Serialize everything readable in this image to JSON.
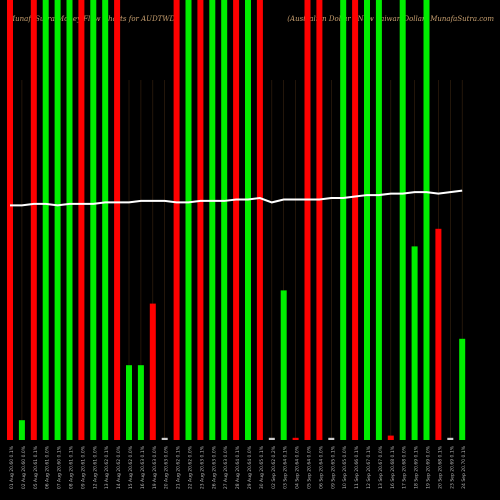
{
  "chart_data": {
    "type": "bar",
    "title": "MunafaSutra Money Flow Charts for AUDTWD",
    "subtitle": "(Australian Dollar / New Taiwan Dollar) MunafaSutra.com",
    "categories": [
      "01 Aug 20.60 0.1%",
      "02 Aug 20.60 0.0%",
      "05 Aug 20.61 0.1%",
      "06 Aug 20.61 0.0%",
      "07 Aug 20.60 0.1%",
      "08 Aug 20.61 0.1%",
      "09 Aug 20.61 0.0%",
      "12 Aug 20.61 0.0%",
      "13 Aug 20.62 0.1%",
      "14 Aug 20.62 0.0%",
      "15 Aug 20.62 0.0%",
      "16 Aug 20.63 0.1%",
      "19 Aug 20.63 0.0%",
      "20 Aug 20.63 0.0%",
      "21 Aug 20.62 0.1%",
      "22 Aug 20.62 0.0%",
      "23 Aug 20.63 0.1%",
      "26 Aug 20.63 0.0%",
      "27 Aug 20.63 0.0%",
      "28 Aug 20.64 0.1%",
      "29 Aug 20.64 0.0%",
      "30 Aug 20.65 0.1%",
      "02 Sep 20.62 0.2%",
      "03 Sep 20.64 0.1%",
      "04 Sep 20.64 0.0%",
      "05 Sep 20.64 0.0%",
      "06 Sep 20.64 0.0%",
      "09 Sep 20.65 0.1%",
      "10 Sep 20.65 0.0%",
      "11 Sep 20.66 0.1%",
      "12 Sep 20.67 0.1%",
      "13 Sep 20.67 0.0%",
      "16 Sep 20.68 0.1%",
      "17 Sep 20.68 0.0%",
      "18 Sep 20.69 0.1%",
      "19 Sep 20.69 0.0%",
      "20 Sep 20.68 0.1%",
      "23 Sep 20.69 0.1%",
      "24 Sep 20.70 0.1%"
    ],
    "series": [
      {
        "name": "Volume",
        "values": [
          100,
          4.5,
          100,
          100,
          100,
          100,
          100,
          100,
          100,
          100,
          17,
          17,
          31,
          0.5,
          100,
          100,
          100,
          100,
          100,
          100,
          100,
          100,
          0.5,
          34,
          0.5,
          100,
          100,
          0.5,
          100,
          100,
          100,
          100,
          1,
          100,
          44,
          100,
          48,
          0.5,
          23
        ],
        "colors": [
          "#ff0000",
          "#00ee00",
          "#ff0000",
          "#00ee00",
          "#00ee00",
          "#00ee00",
          "#ff0000",
          "#00ee00",
          "#00ee00",
          "#ff0000",
          "#00ee00",
          "#00ee00",
          "#ff0000",
          "#cccccc",
          "#ff0000",
          "#00ee00",
          "#ff0000",
          "#00ee00",
          "#00ee00",
          "#ff0000",
          "#00ee00",
          "#ff0000",
          "#cccccc",
          "#00ee00",
          "#ff0000",
          "#ff0000",
          "#ff0000",
          "#cccccc",
          "#00ee00",
          "#ff0000",
          "#00ee00",
          "#00ee00",
          "#ff0000",
          "#00ee00",
          "#00ee00",
          "#00ee00",
          "#ff0000",
          "#cccccc",
          "#00ee00"
        ]
      },
      {
        "name": "Price",
        "color": "#ffffff",
        "axis": "y2",
        "values": [
          20.6,
          20.6,
          20.61,
          20.61,
          20.6,
          20.61,
          20.61,
          20.61,
          20.62,
          20.62,
          20.62,
          20.63,
          20.63,
          20.63,
          20.62,
          20.62,
          20.63,
          20.63,
          20.63,
          20.64,
          20.64,
          20.65,
          20.62,
          20.64,
          20.64,
          20.64,
          20.64,
          20.65,
          20.65,
          20.66,
          20.67,
          20.67,
          20.68,
          20.68,
          20.69,
          20.69,
          20.68,
          20.69,
          20.7
        ]
      }
    ],
    "ylim": [
      0,
      100
    ],
    "y2lim": [
      19,
      22
    ]
  }
}
